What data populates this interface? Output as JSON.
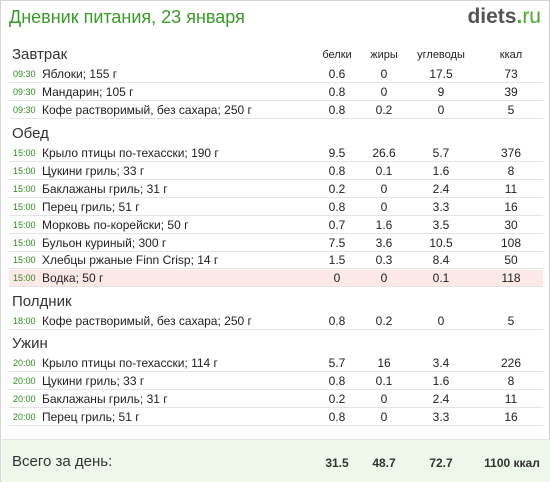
{
  "title": "Дневник питания, 23 января",
  "logo": {
    "brand": "diets",
    "dot": ".",
    "tld": "ru"
  },
  "columns": [
    "белки",
    "жиры",
    "углеводы",
    "ккал"
  ],
  "meals": [
    {
      "name": "Завтрак",
      "items": [
        {
          "time": "09:30",
          "name": "Яблоки; 155 г",
          "p": "0.6",
          "f": "0",
          "c": "17.5",
          "k": "73"
        },
        {
          "time": "09:30",
          "name": "Мандарин; 105 г",
          "p": "0.8",
          "f": "0",
          "c": "9",
          "k": "39"
        },
        {
          "time": "09:30",
          "name": "Кофе растворимый, без сахара; 250 г",
          "p": "0.8",
          "f": "0.2",
          "c": "0",
          "k": "5"
        }
      ]
    },
    {
      "name": "Обед",
      "items": [
        {
          "time": "15:00",
          "name": "Крыло птицы по-техасски; 190 г",
          "p": "9.5",
          "f": "26.6",
          "c": "5.7",
          "k": "376"
        },
        {
          "time": "15:00",
          "name": "Цукини гриль; 33 г",
          "p": "0.8",
          "f": "0.1",
          "c": "1.6",
          "k": "8"
        },
        {
          "time": "15:00",
          "name": "Баклажаны гриль; 31 г",
          "p": "0.2",
          "f": "0",
          "c": "2.4",
          "k": "11"
        },
        {
          "time": "15:00",
          "name": "Перец гриль; 51 г",
          "p": "0.8",
          "f": "0",
          "c": "3.3",
          "k": "16"
        },
        {
          "time": "15:00",
          "name": "Морковь по-корейски; 50 г",
          "p": "0.7",
          "f": "1.6",
          "c": "3.5",
          "k": "30"
        },
        {
          "time": "15:00",
          "name": "Бульон куриный; 300 г",
          "p": "7.5",
          "f": "3.6",
          "c": "10.5",
          "k": "108"
        },
        {
          "time": "15:00",
          "name": "Хлебцы ржаные Finn Crisp; 14 г",
          "p": "1.5",
          "f": "0.3",
          "c": "8.4",
          "k": "50"
        },
        {
          "time": "15:00",
          "name": "Водка; 50 г",
          "p": "0",
          "f": "0",
          "c": "0.1",
          "k": "118",
          "highlight": true
        }
      ]
    },
    {
      "name": "Полдник",
      "items": [
        {
          "time": "18:00",
          "name": "Кофе растворимый, без сахара; 250 г",
          "p": "0.8",
          "f": "0.2",
          "c": "0",
          "k": "5"
        }
      ]
    },
    {
      "name": "Ужин",
      "items": [
        {
          "time": "20:00",
          "name": "Крыло птицы по-техасски; 114 г",
          "p": "5.7",
          "f": "16",
          "c": "3.4",
          "k": "226"
        },
        {
          "time": "20:00",
          "name": "Цукини гриль; 33 г",
          "p": "0.8",
          "f": "0.1",
          "c": "1.6",
          "k": "8"
        },
        {
          "time": "20:00",
          "name": "Баклажаны гриль; 31 г",
          "p": "0.2",
          "f": "0",
          "c": "2.4",
          "k": "11"
        },
        {
          "time": "20:00",
          "name": "Перец гриль; 51 г",
          "p": "0.8",
          "f": "0",
          "c": "3.3",
          "k": "16"
        }
      ]
    }
  ],
  "footer": {
    "label": "Всего за день:",
    "p": "31.5",
    "f": "48.7",
    "c": "72.7",
    "k": "1100 ккал"
  }
}
